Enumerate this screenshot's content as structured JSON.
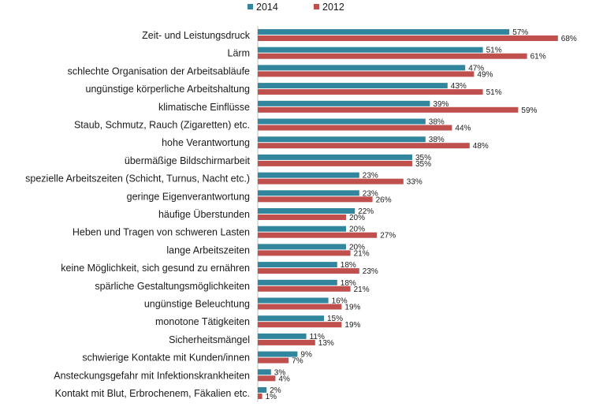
{
  "chart_data": {
    "type": "bar",
    "orientation": "horizontal",
    "categories": [
      "Zeit- und Leistungsdruck",
      "Lärm",
      "schlechte Organisation der Arbeitsabläufe",
      "ungünstige körperliche Arbeitshaltung",
      "klimatische Einflüsse",
      "Staub, Schmutz, Rauch (Zigaretten) etc.",
      "hohe Verantwortung",
      "übermäßige Bildschirmarbeit",
      "spezielle Arbeitszeiten (Schicht, Turnus, Nacht etc.)",
      "geringe Eigenverantwortung",
      "häufige Überstunden",
      "Heben und Tragen von schweren Lasten",
      "lange Arbeitszeiten",
      "keine Möglichkeit, sich gesund zu ernähren",
      "spärliche Gestaltungsmöglichkeiten",
      "ungünstige Beleuchtung",
      "monotone Tätigkeiten",
      "Sicherheitsmängel",
      "schwierige Kontakte mit Kunden/innen",
      "Ansteckungsgefahr mit Infektionskrankheiten",
      "Kontakt mit Blut, Erbrochenem, Fäkalien etc."
    ],
    "series": [
      {
        "name": "2014",
        "color": "#31859c",
        "values": [
          57,
          51,
          47,
          43,
          39,
          38,
          38,
          35,
          23,
          23,
          22,
          20,
          20,
          18,
          18,
          16,
          15,
          11,
          9,
          3,
          2
        ]
      },
      {
        "name": "2012",
        "color": "#c0504d",
        "values": [
          68,
          61,
          49,
          51,
          59,
          44,
          48,
          35,
          33,
          26,
          20,
          27,
          21,
          23,
          21,
          19,
          19,
          13,
          7,
          4,
          1
        ]
      }
    ],
    "value_suffix": "%",
    "xlim": [
      0,
      75
    ],
    "grid": false,
    "legend_position": "top-center",
    "title": "",
    "xlabel": "",
    "ylabel": ""
  }
}
